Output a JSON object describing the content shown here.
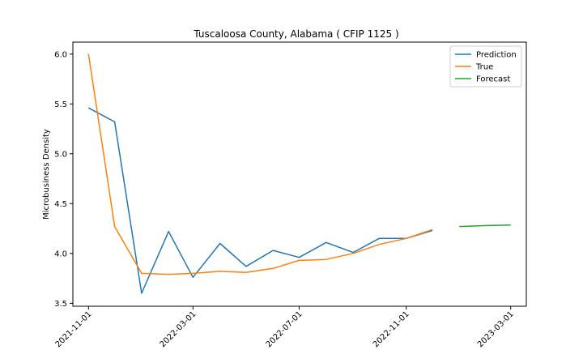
{
  "chart_data": {
    "type": "line",
    "title": "Tuscaloosa County, Alabama ( CFIP 1125 )",
    "xlabel": "",
    "ylabel": "Microbusiness Density",
    "xlim": [
      "2021-10-14",
      "2023-03-19"
    ],
    "ylim": [
      3.47,
      6.12
    ],
    "x_ticks": [
      "2021-11-01",
      "2022-03-01",
      "2022-07-01",
      "2022-11-01",
      "2023-03-01"
    ],
    "y_ticks": [
      "3.5",
      "4.0",
      "4.5",
      "5.0",
      "5.5",
      "6.0"
    ],
    "grid": false,
    "legend_position": "top-right",
    "series": [
      {
        "name": "Prediction",
        "color": "#1f77b4",
        "x": [
          "2021-11-01",
          "2021-12-01",
          "2022-01-01",
          "2022-02-01",
          "2022-03-01",
          "2022-04-01",
          "2022-05-01",
          "2022-06-01",
          "2022-07-01",
          "2022-08-01",
          "2022-09-01",
          "2022-10-01",
          "2022-11-01",
          "2022-12-01"
        ],
        "values": [
          5.46,
          5.32,
          3.6,
          4.22,
          3.76,
          4.1,
          3.87,
          4.03,
          3.96,
          4.11,
          4.01,
          4.15,
          4.15,
          4.23
        ]
      },
      {
        "name": "True",
        "color": "#ff7f0e",
        "x": [
          "2021-11-01",
          "2021-12-01",
          "2022-01-01",
          "2022-02-01",
          "2022-03-01",
          "2022-04-01",
          "2022-05-01",
          "2022-06-01",
          "2022-07-01",
          "2022-08-01",
          "2022-09-01",
          "2022-10-01",
          "2022-11-01",
          "2022-12-01"
        ],
        "values": [
          6.0,
          4.27,
          3.8,
          3.79,
          3.8,
          3.82,
          3.81,
          3.85,
          3.93,
          3.94,
          4.0,
          4.09,
          4.15,
          4.24
        ]
      },
      {
        "name": "Forecast",
        "color": "#2ca02c",
        "x": [
          "2023-01-01",
          "2023-02-01",
          "2023-03-01"
        ],
        "values": [
          4.27,
          4.28,
          4.285
        ]
      }
    ]
  }
}
